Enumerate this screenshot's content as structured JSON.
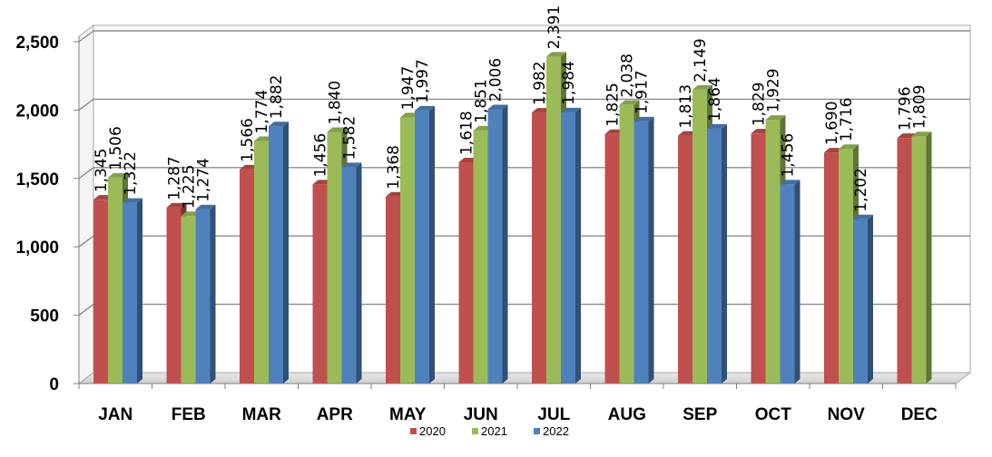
{
  "chart_data": {
    "type": "bar",
    "categories": [
      "JAN",
      "FEB",
      "MAR",
      "APR",
      "MAY",
      "JUN",
      "JUL",
      "AUG",
      "SEP",
      "OCT",
      "NOV",
      "DEC"
    ],
    "series": [
      {
        "name": "2020",
        "color": "#c0504d",
        "values": [
          1345,
          1287,
          1566,
          1456,
          1368,
          1618,
          1982,
          1825,
          1813,
          1829,
          1690,
          1796
        ],
        "labels": [
          "1,345",
          "1,287",
          "1,566",
          "1,456",
          "1,368",
          "1,618",
          "1,982",
          "1,825",
          "1,813",
          "1,829",
          "1,690",
          "1,796"
        ]
      },
      {
        "name": "2021",
        "color": "#9bbb59",
        "values": [
          1506,
          1225,
          1774,
          1840,
          1947,
          1851,
          2391,
          2038,
          2149,
          1929,
          1716,
          1809
        ],
        "labels": [
          "1,506",
          "1,225",
          "1,774",
          "1,840",
          "1,947",
          "1,851",
          "2,391",
          "2,038",
          "2,149",
          "1,929",
          "1,716",
          "1,809"
        ]
      },
      {
        "name": "2022",
        "color": "#4f81bd",
        "values": [
          1322,
          1274,
          1882,
          1582,
          1997,
          2006,
          1984,
          1917,
          1864,
          1456,
          1202,
          null
        ],
        "labels": [
          "1,322",
          "1,274",
          "1,882",
          "1,582",
          "1,997",
          "2,006",
          "1,984",
          "1,917",
          "1,864",
          "1,456",
          "1,202",
          null
        ]
      }
    ],
    "yticks": [
      0,
      500,
      1000,
      1500,
      2000,
      2500
    ],
    "ytick_labels": [
      "0",
      "500",
      "1,000",
      "1,500",
      "2,000",
      "2,500"
    ],
    "ylim": [
      0,
      2500
    ],
    "grid": true,
    "legend_position": "bottom-center",
    "title": "",
    "xlabel": "",
    "ylabel": ""
  }
}
